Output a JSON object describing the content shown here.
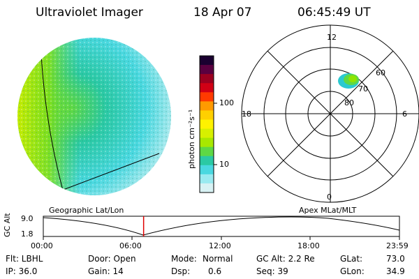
{
  "header": {
    "instrument": "Ultraviolet Imager",
    "date": "18 Apr 07",
    "time": "06:45:49 UT"
  },
  "colorbar": {
    "unit_label": "photon cm⁻²s⁻¹",
    "ticks": [
      "100",
      "10"
    ],
    "colors": [
      "#1a0030",
      "#5a0040",
      "#9b0020",
      "#d10015",
      "#ff3a00",
      "#ff9a00",
      "#ffd000",
      "#fff200",
      "#d7f000",
      "#a8e800",
      "#5ed845",
      "#2bc9a4",
      "#4ad8e0",
      "#9aeaf0",
      "#d8f2f4"
    ]
  },
  "polar_plot": {
    "mlt_labels": {
      "top": "12",
      "left": "18",
      "right": "6",
      "bottom": "0"
    },
    "lat_labels": [
      "60",
      "70",
      "80"
    ]
  },
  "map_labels": {
    "geo": "Geographic Lat/Lon",
    "apex": "Apex MLat/MLT"
  },
  "altitude_plot": {
    "ylabel": "GC Alt",
    "yticks": [
      "9.0",
      "1.8"
    ],
    "xticks": [
      "00:00",
      "06:00",
      "12:00",
      "18:00",
      "23:59"
    ],
    "current_time_hours": 6.76
  },
  "info": {
    "flt": "Flt: LBHL",
    "ip": "IP: 36.0",
    "door": "Door: Open",
    "gain": "Gain: 14",
    "mode_label": "Mode:",
    "mode_value": "Normal",
    "dsp_label": "Dsp:",
    "dsp_value": "0.6",
    "gcalt": "GC Alt: 2.2 Re",
    "seq": "Seq: 39",
    "glat_label": "GLat:",
    "glat_value": "73.0",
    "glon_label": "GLon:",
    "glon_value": "34.9"
  }
}
